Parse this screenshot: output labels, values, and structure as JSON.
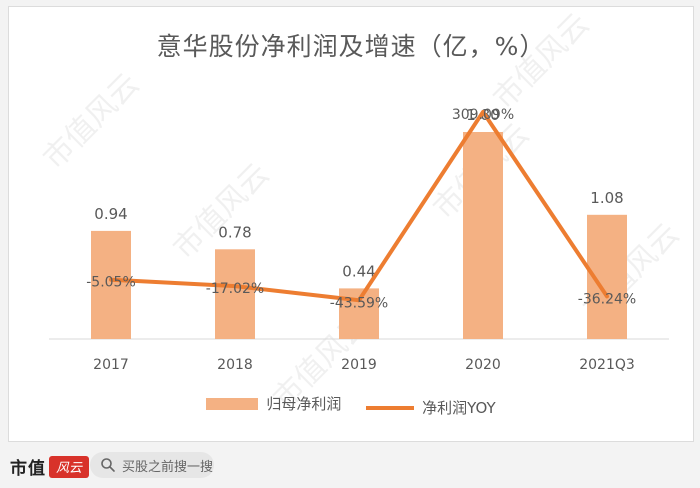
{
  "title": "意华股份净利润及增速（亿，%）",
  "watermark": "市值风云",
  "colors": {
    "bar": "#f4b183",
    "line": "#ed7d31",
    "text": "#595959",
    "axis": "#d9d9d9"
  },
  "legend": {
    "bar_label": "归母净利润",
    "line_label": "净利润YOY"
  },
  "chart_data": {
    "type": "bar+line",
    "categories": [
      "2017",
      "2018",
      "2019",
      "2020",
      "2021Q3"
    ],
    "series": [
      {
        "name": "归母净利润",
        "type": "bar",
        "values": [
          0.94,
          0.78,
          0.44,
          1.8,
          1.08
        ],
        "labels": [
          "0.94",
          "0.78",
          "0.44",
          "1.80",
          "1.08"
        ]
      },
      {
        "name": "净利润YOY",
        "type": "line",
        "values": [
          -5.05,
          -17.02,
          -43.59,
          309.09,
          -36.24
        ],
        "labels": [
          "-5.05%",
          "-17.02%",
          "-43.59%",
          "309.09%",
          "-36.24%"
        ]
      }
    ],
    "grid": false,
    "legend_position": "bottom"
  },
  "footer": {
    "logo_text": "市值",
    "logo_seal": "风云",
    "search_placeholder": "买股之前搜一搜"
  }
}
